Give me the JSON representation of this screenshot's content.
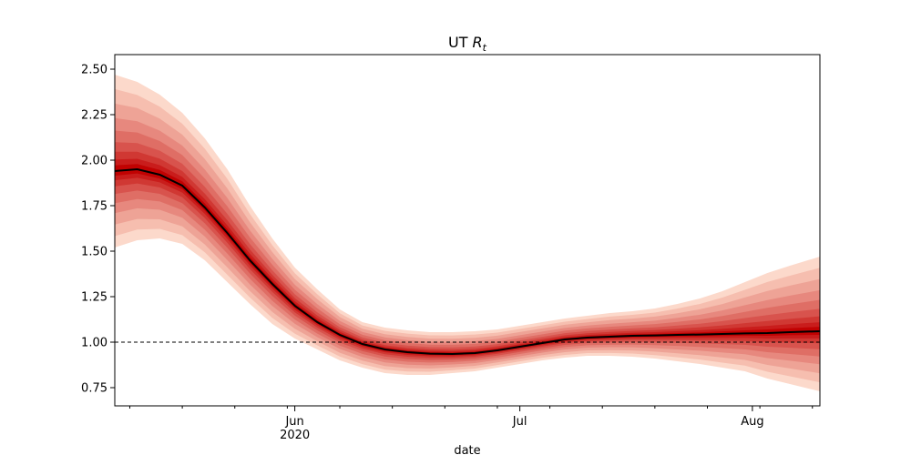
{
  "chart_data": {
    "type": "line",
    "title_prefix": "UT",
    "title_symbol": "R",
    "title_subscript": "t",
    "xlabel": "date",
    "x_range": [
      "2020-05-08",
      "2020-08-10"
    ],
    "ylim": [
      0.65,
      2.58
    ],
    "y_ticks": [
      "0.75",
      "1.00",
      "1.25",
      "1.50",
      "1.75",
      "2.00",
      "2.25",
      "2.50"
    ],
    "x_major_ticks": [
      {
        "date": "2020-06-01",
        "label": "Jun",
        "sublabel": "2020"
      },
      {
        "date": "2020-07-01",
        "label": "Jul",
        "sublabel": ""
      },
      {
        "date": "2020-08-01",
        "label": "Aug",
        "sublabel": ""
      }
    ],
    "grid": false,
    "reference_line": {
      "y": 1.0,
      "style": "dashed",
      "color": "#000000"
    },
    "colors": {
      "median_line": "#000000",
      "band_core": "#c00000",
      "band_outer": "#fcd5c5"
    },
    "series": [
      {
        "x": [
          "2020-05-08",
          "2020-05-11",
          "2020-05-14",
          "2020-05-17",
          "2020-05-20",
          "2020-05-23",
          "2020-05-26",
          "2020-05-29",
          "2020-06-01",
          "2020-06-04",
          "2020-06-07",
          "2020-06-10",
          "2020-06-13",
          "2020-06-16",
          "2020-06-19",
          "2020-06-22",
          "2020-06-25",
          "2020-06-28",
          "2020-07-01",
          "2020-07-04",
          "2020-07-07",
          "2020-07-10",
          "2020-07-13",
          "2020-07-16",
          "2020-07-19",
          "2020-07-22",
          "2020-07-25",
          "2020-07-28",
          "2020-07-31",
          "2020-08-03",
          "2020-08-06",
          "2020-08-10"
        ],
        "median": [
          1.94,
          1.95,
          1.92,
          1.86,
          1.74,
          1.6,
          1.45,
          1.32,
          1.2,
          1.11,
          1.04,
          0.99,
          0.96,
          0.945,
          0.937,
          0.935,
          0.94,
          0.955,
          0.975,
          0.995,
          1.015,
          1.025,
          1.03,
          1.035,
          1.037,
          1.04,
          1.042,
          1.045,
          1.048,
          1.05,
          1.055,
          1.06
        ],
        "lower_95": [
          1.52,
          1.56,
          1.57,
          1.54,
          1.45,
          1.33,
          1.21,
          1.1,
          1.02,
          0.96,
          0.9,
          0.86,
          0.83,
          0.82,
          0.82,
          0.83,
          0.84,
          0.86,
          0.88,
          0.9,
          0.915,
          0.925,
          0.925,
          0.92,
          0.91,
          0.895,
          0.88,
          0.86,
          0.84,
          0.8,
          0.77,
          0.73
        ],
        "upper_95": [
          2.47,
          2.43,
          2.36,
          2.26,
          2.12,
          1.95,
          1.75,
          1.57,
          1.41,
          1.29,
          1.18,
          1.11,
          1.08,
          1.065,
          1.055,
          1.055,
          1.06,
          1.07,
          1.09,
          1.11,
          1.13,
          1.145,
          1.16,
          1.17,
          1.185,
          1.21,
          1.24,
          1.28,
          1.33,
          1.38,
          1.42,
          1.47
        ]
      }
    ]
  }
}
